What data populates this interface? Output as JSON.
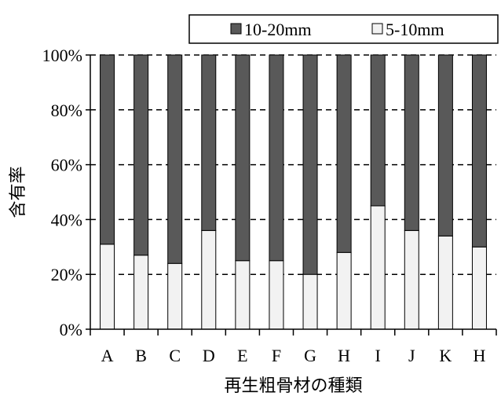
{
  "chart_data": {
    "type": "bar",
    "stacked": true,
    "percent": true,
    "categories": [
      "A",
      "B",
      "C",
      "D",
      "E",
      "F",
      "G",
      "H",
      "I",
      "J",
      "K",
      "H"
    ],
    "series": [
      {
        "name": "5-10mm",
        "color": "#f2f2f2",
        "values": [
          31,
          27,
          24,
          36,
          25,
          25,
          20,
          28,
          45,
          36,
          34,
          30
        ]
      },
      {
        "name": "10-20mm",
        "color": "#595959",
        "values": [
          69,
          73,
          76,
          64,
          75,
          75,
          80,
          72,
          55,
          64,
          66,
          70
        ]
      }
    ],
    "legend_order": [
      "10-20mm",
      "5-10mm"
    ],
    "legend_position": "top-right",
    "xlabel": "再生粗骨材の種類",
    "ylabel": "含有率",
    "ylim": [
      0,
      100
    ],
    "yticks": [
      "0%",
      "20%",
      "40%",
      "60%",
      "80%",
      "100%"
    ],
    "grid": "horizontal dashed"
  }
}
